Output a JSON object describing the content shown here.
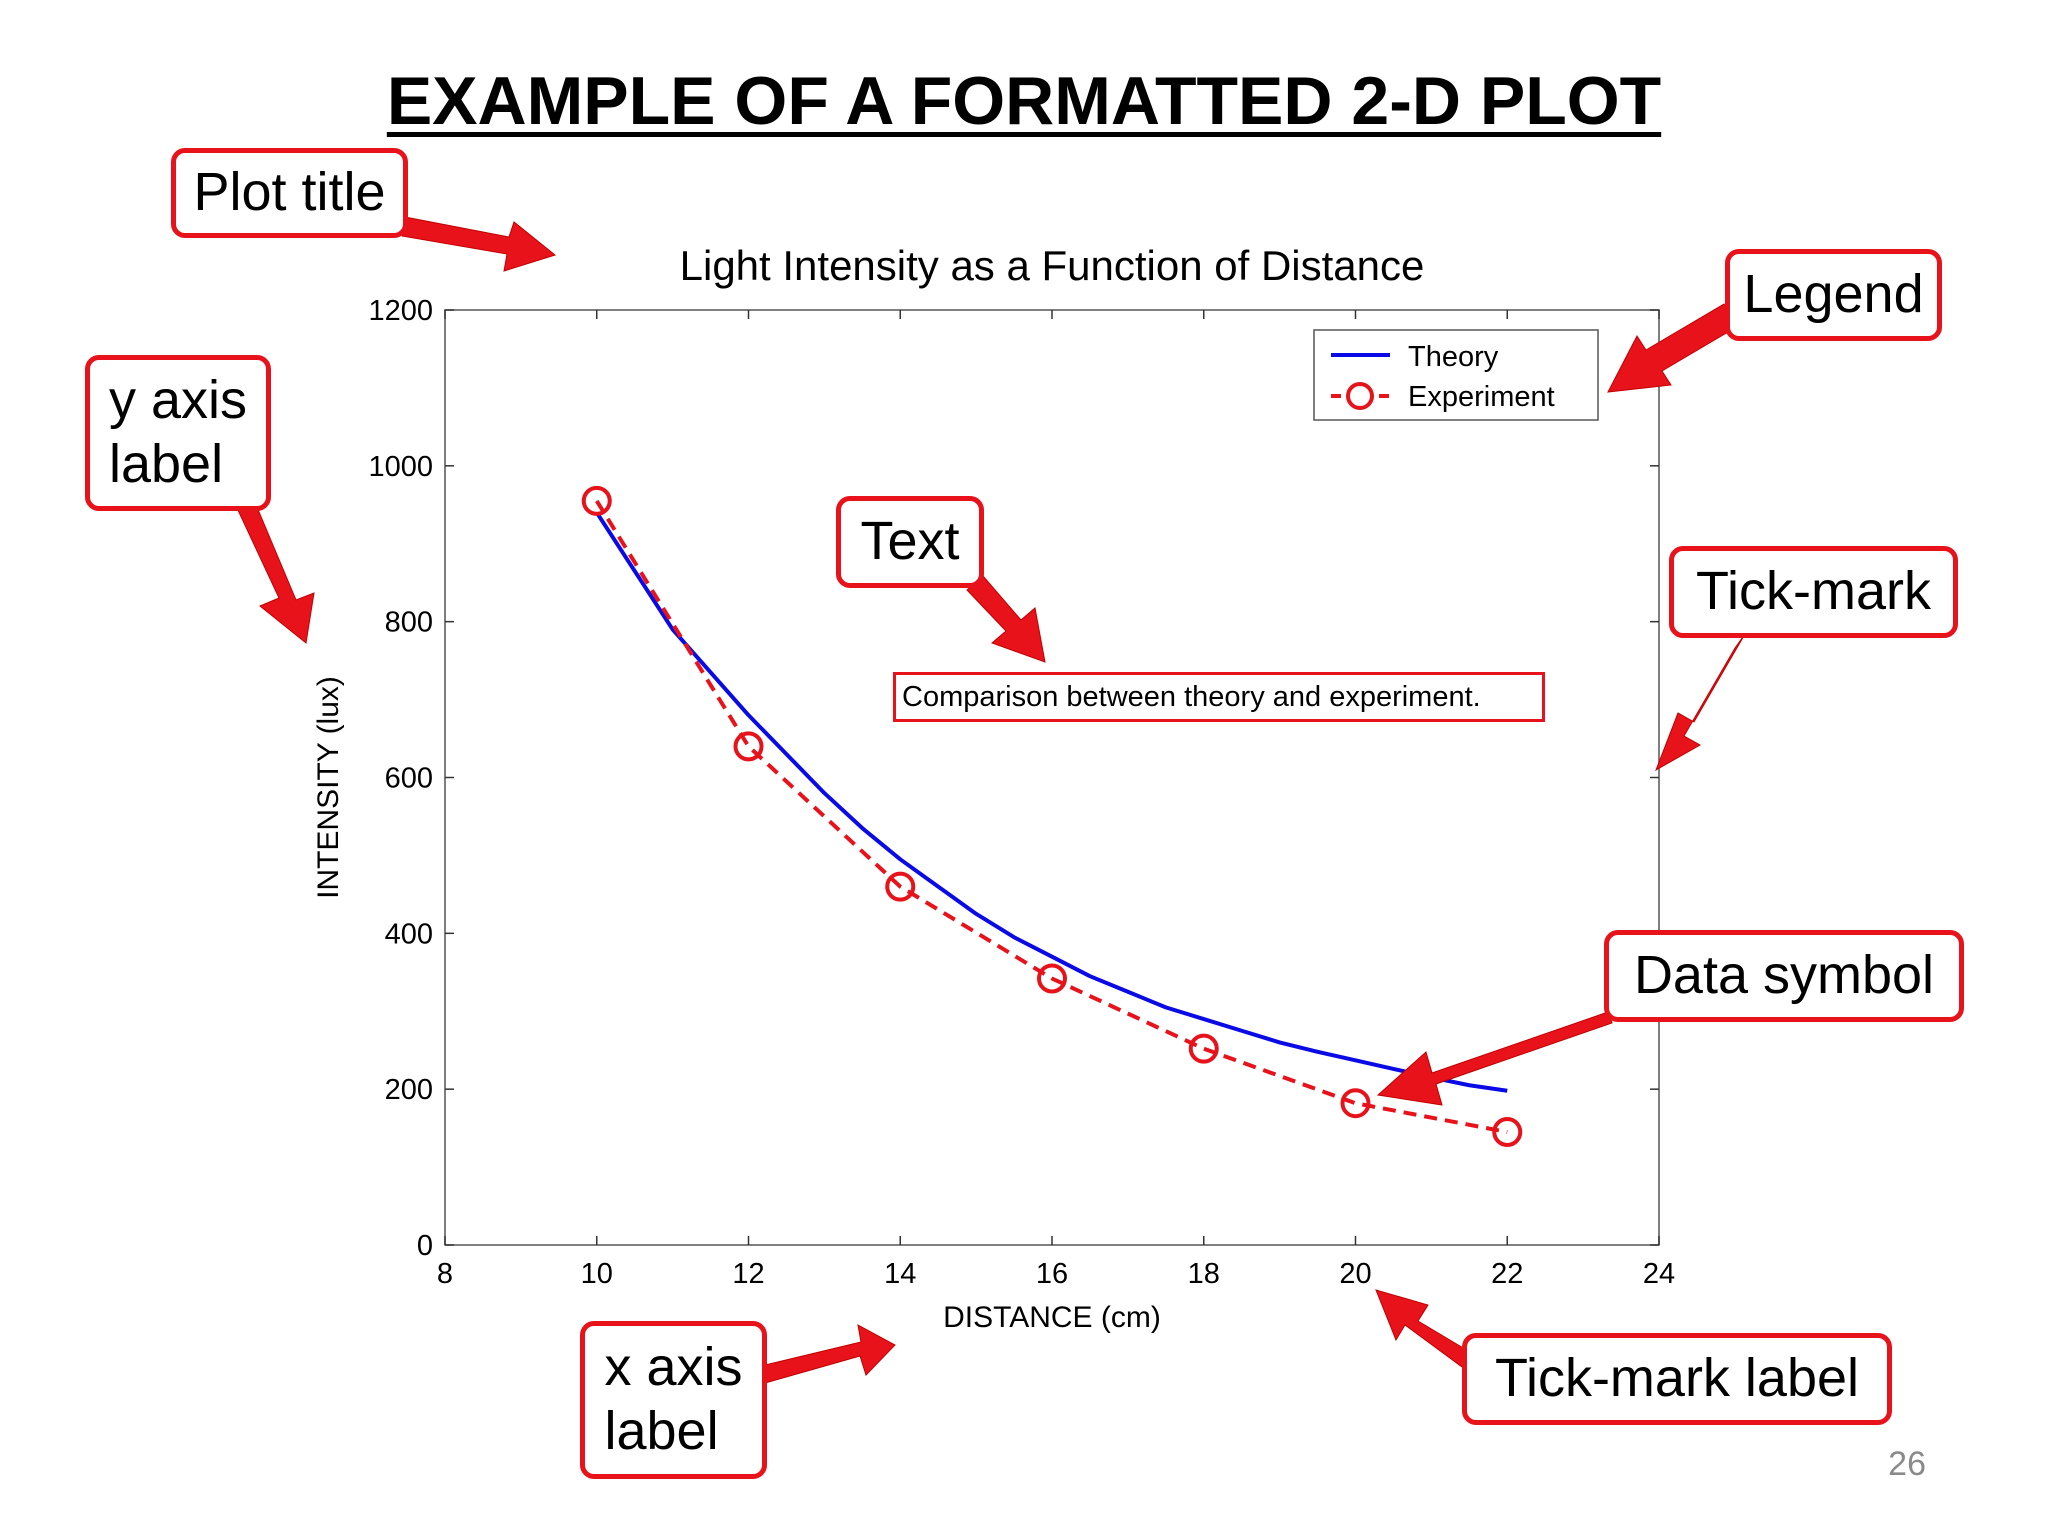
{
  "slide": {
    "title": "EXAMPLE OF A FORMATTED 2-D PLOT",
    "page_number": "26"
  },
  "callouts": {
    "plot_title": "Plot title",
    "legend": "Legend",
    "y_axis_label": "y axis\nlabel",
    "text": "Text",
    "tick_mark": "Tick-mark",
    "data_symbol": "Data symbol",
    "x_axis_label": "x axis\nlabel",
    "tick_mark_label": "Tick-mark label"
  },
  "colors": {
    "callout_border": "#e8121b",
    "arrow_fill": "#e8121b",
    "theory_line": "#0a0ae6",
    "experiment_line": "#e8121b"
  },
  "chart_data": {
    "type": "line",
    "title": "Light Intensity as a Function of Distance",
    "xlabel": "DISTANCE (cm)",
    "ylabel": "INTENSITY (lux)",
    "xlim": [
      8,
      24
    ],
    "ylim": [
      0,
      1200
    ],
    "xticks": [
      8,
      10,
      12,
      14,
      16,
      18,
      20,
      22,
      24
    ],
    "yticks": [
      0,
      200,
      400,
      600,
      800,
      1000,
      1200
    ],
    "grid": false,
    "legend_position": "top-right",
    "annotation": "Comparison between theory and experiment.",
    "series": [
      {
        "name": "Theory",
        "style": "solid line",
        "color": "#0a0ae6",
        "x": [
          10,
          10.5,
          11,
          11.5,
          12,
          12.5,
          13,
          13.5,
          14,
          14.5,
          15,
          15.5,
          16,
          16.5,
          17,
          17.5,
          18,
          18.5,
          19,
          19.5,
          20,
          20.5,
          21,
          21.5,
          22
        ],
        "y": [
          940,
          865,
          790,
          735,
          680,
          630,
          580,
          535,
          495,
          460,
          425,
          395,
          370,
          345,
          325,
          305,
          290,
          275,
          260,
          248,
          237,
          226,
          215,
          205,
          198
        ]
      },
      {
        "name": "Experiment",
        "style": "dashed line with circle markers",
        "color": "#e8121b",
        "x": [
          10,
          12,
          14,
          16,
          18,
          20,
          22
        ],
        "y": [
          955,
          640,
          460,
          342,
          252,
          182,
          145
        ]
      }
    ]
  }
}
